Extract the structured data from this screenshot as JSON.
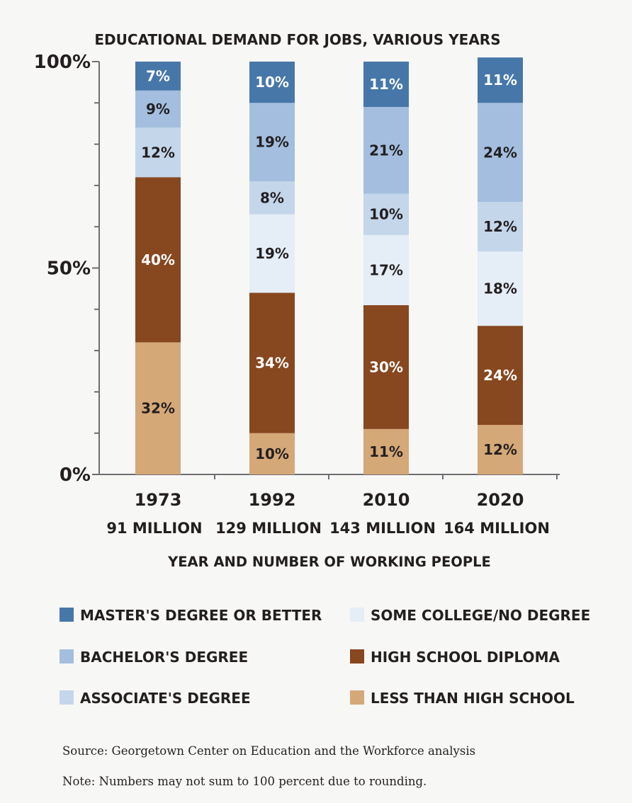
{
  "chart_data": {
    "type": "bar",
    "stacked": true,
    "title": "EDUCATIONAL DEMAND FOR JOBS, VARIOUS YEARS",
    "xlabel": "YEAR AND NUMBER OF WORKING PEOPLE",
    "ylabel": "",
    "ylim": [
      0,
      100
    ],
    "y_ticks": [
      "0%",
      "50%",
      "100%"
    ],
    "categories": [
      "1973",
      "1992",
      "2010",
      "2020"
    ],
    "category_sublabels": [
      "91 MILLION",
      "129 MILLION",
      "143 MILLION",
      "164 MILLION"
    ],
    "series": [
      {
        "name": "LESS THAN HIGH SCHOOL",
        "color": "#d5a878",
        "label_color": "#231f20",
        "values": [
          32,
          10,
          11,
          12
        ],
        "labels": [
          "32%",
          "10%",
          "11%",
          "12%"
        ]
      },
      {
        "name": "HIGH SCHOOL DIPLOMA",
        "color": "#87471f",
        "label_color": "#ffffff",
        "values": [
          40,
          34,
          30,
          24
        ],
        "labels": [
          "40%",
          "34%",
          "30%",
          "24%"
        ]
      },
      {
        "name": "SOME COLLEGE/NO DEGREE",
        "color": "#e5edf6",
        "label_color": "#231f20",
        "values": [
          0,
          19,
          17,
          18
        ],
        "labels": [
          "",
          "19%",
          "17%",
          "18%"
        ]
      },
      {
        "name": "ASSOCIATE'S DEGREE",
        "color": "#c4d6ea",
        "label_color": "#231f20",
        "values": [
          12,
          8,
          10,
          12
        ],
        "labels": [
          "12%",
          "8%",
          "10%",
          "12%"
        ]
      },
      {
        "name": "BACHELOR'S DEGREE",
        "color": "#a3bede",
        "label_color": "#231f20",
        "values": [
          9,
          19,
          21,
          24
        ],
        "labels": [
          "9%",
          "19%",
          "21%",
          "24%"
        ]
      },
      {
        "name": "MASTER'S DEGREE OR BETTER",
        "color": "#4677a8",
        "label_color": "#ffffff",
        "values": [
          7,
          10,
          11,
          11
        ],
        "labels": [
          "7%",
          "10%",
          "11%",
          "11%"
        ]
      }
    ],
    "legend": {
      "placement": "bottom",
      "left_column": [
        "MASTER'S DEGREE OR BETTER",
        "BACHELOR'S DEGREE",
        "ASSOCIATE'S DEGREE"
      ],
      "right_column": [
        "SOME COLLEGE/NO DEGREE",
        "HIGH SCHOOL DIPLOMA",
        "LESS THAN HIGH SCHOOL"
      ]
    },
    "grid": false
  },
  "notes": {
    "source": "Source: Georgetown Center on Education and the Workforce analysis",
    "note": "Note: Numbers may not sum to 100 percent due to rounding."
  }
}
